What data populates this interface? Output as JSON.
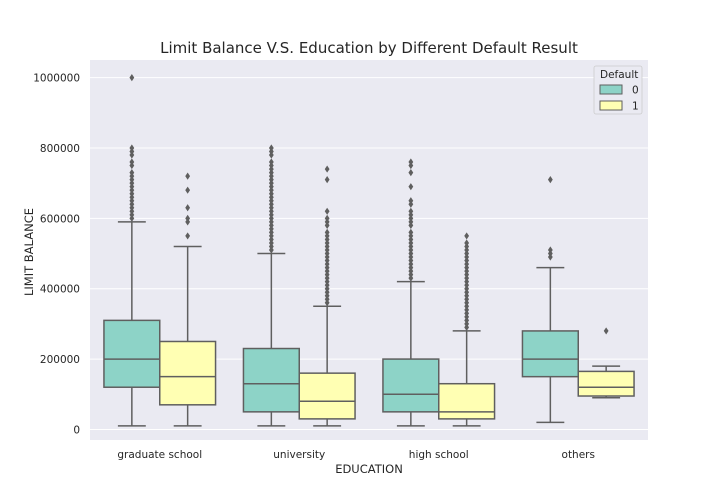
{
  "chart_data": {
    "type": "box",
    "title": "Limit Balance V.S. Education by Different Default Result",
    "xlabel": "EDUCATION",
    "ylabel": "LIMIT BALANCE",
    "categories": [
      "graduate school",
      "university",
      "high school",
      "others"
    ],
    "ylim": [
      -30000,
      1050000
    ],
    "yticks": [
      0,
      200000,
      400000,
      600000,
      800000,
      1000000
    ],
    "ytick_labels": [
      "0",
      "200000",
      "400000",
      "600000",
      "800000",
      "1000000"
    ],
    "grid": true,
    "legend": {
      "title": "Default",
      "position": "top-right"
    },
    "series": [
      {
        "name": "0",
        "color": "#8dd3c7",
        "boxes": [
          {
            "whisker_low": 10000,
            "q1": 120000,
            "median": 200000,
            "q3": 310000,
            "whisker_high": 590000,
            "outliers": [
              600000,
              610000,
              620000,
              630000,
              640000,
              650000,
              660000,
              670000,
              680000,
              690000,
              700000,
              710000,
              720000,
              730000,
              750000,
              760000,
              780000,
              790000,
              800000,
              1000000
            ]
          },
          {
            "whisker_low": 10000,
            "q1": 50000,
            "median": 130000,
            "q3": 230000,
            "whisker_high": 500000,
            "outliers": [
              510000,
              520000,
              530000,
              540000,
              550000,
              560000,
              570000,
              580000,
              590000,
              600000,
              610000,
              620000,
              630000,
              640000,
              650000,
              660000,
              670000,
              680000,
              690000,
              700000,
              710000,
              720000,
              730000,
              740000,
              750000,
              760000,
              780000,
              790000,
              800000
            ]
          },
          {
            "whisker_low": 10000,
            "q1": 50000,
            "median": 100000,
            "q3": 200000,
            "whisker_high": 420000,
            "outliers": [
              430000,
              440000,
              450000,
              460000,
              470000,
              480000,
              490000,
              500000,
              510000,
              520000,
              530000,
              540000,
              550000,
              560000,
              580000,
              590000,
              600000,
              610000,
              620000,
              640000,
              650000,
              690000,
              730000,
              750000,
              760000
            ]
          },
          {
            "whisker_low": 20000,
            "q1": 150000,
            "median": 200000,
            "q3": 280000,
            "whisker_high": 460000,
            "outliers": [
              490000,
              500000,
              510000,
              710000
            ]
          }
        ]
      },
      {
        "name": "1",
        "color": "#ffffb3",
        "boxes": [
          {
            "whisker_low": 10000,
            "q1": 70000,
            "median": 150000,
            "q3": 250000,
            "whisker_high": 520000,
            "outliers": [
              550000,
              590000,
              600000,
              630000,
              680000,
              720000
            ]
          },
          {
            "whisker_low": 10000,
            "q1": 30000,
            "median": 80000,
            "q3": 160000,
            "whisker_high": 350000,
            "outliers": [
              360000,
              370000,
              380000,
              390000,
              400000,
              410000,
              420000,
              430000,
              440000,
              450000,
              460000,
              470000,
              480000,
              490000,
              500000,
              510000,
              520000,
              530000,
              540000,
              550000,
              560000,
              580000,
              590000,
              600000,
              620000,
              710000,
              740000
            ]
          },
          {
            "whisker_low": 10000,
            "q1": 30000,
            "median": 50000,
            "q3": 130000,
            "whisker_high": 280000,
            "outliers": [
              290000,
              300000,
              310000,
              320000,
              330000,
              340000,
              350000,
              360000,
              370000,
              380000,
              390000,
              400000,
              410000,
              420000,
              430000,
              440000,
              450000,
              460000,
              470000,
              480000,
              490000,
              500000,
              510000,
              520000,
              530000,
              550000
            ]
          },
          {
            "whisker_low": 90000,
            "q1": 95000,
            "median": 120000,
            "q3": 165000,
            "whisker_high": 180000,
            "outliers": [
              280000
            ]
          }
        ]
      }
    ]
  }
}
